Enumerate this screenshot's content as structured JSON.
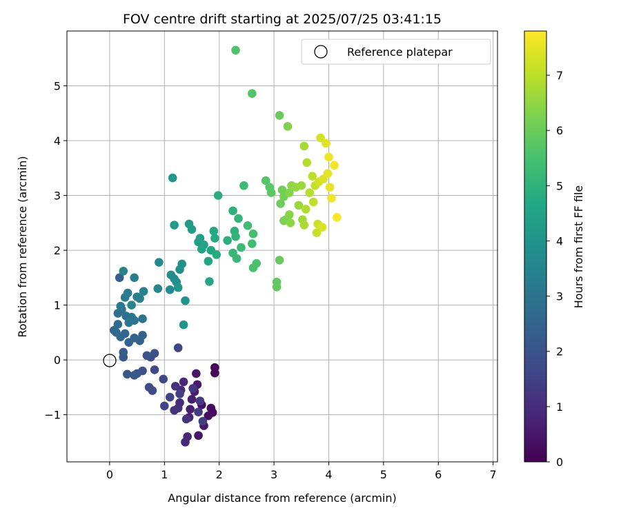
{
  "chart_data": {
    "type": "scatter",
    "title": "FOV centre drift starting at 2025/07/25 03:41:15",
    "xlabel": "Angular distance from reference (arcmin)",
    "ylabel": "Rotation from reference (arcmin)",
    "xlim": [
      -0.78,
      7.08
    ],
    "ylim": [
      -1.86,
      6.0
    ],
    "xticks": [
      0,
      1,
      2,
      3,
      4,
      5,
      6,
      7
    ],
    "yticks": [
      -1,
      0,
      1,
      2,
      3,
      4,
      5
    ],
    "grid": true,
    "legend": {
      "placement": "upper-right",
      "entries": [
        {
          "label": "Reference platepar",
          "marker": "open-circle"
        }
      ]
    },
    "reference_point": {
      "x": 0,
      "y": 0
    },
    "colorbar": {
      "label": "Hours from first FF file",
      "colormap": "viridis",
      "range": [
        0,
        7.8
      ],
      "ticks": [
        0,
        1,
        2,
        3,
        4,
        5,
        6,
        7
      ]
    },
    "points": [
      [
        1.92,
        -0.14,
        0.1
      ],
      [
        1.92,
        -0.24,
        0.15
      ],
      [
        1.85,
        -0.88,
        0.2
      ],
      [
        1.88,
        -0.96,
        0.25
      ],
      [
        1.8,
        -1.02,
        0.3
      ],
      [
        1.68,
        -0.82,
        0.35
      ],
      [
        1.72,
        -1.2,
        0.4
      ],
      [
        1.62,
        -1.38,
        0.45
      ],
      [
        1.58,
        -0.25,
        0.5
      ],
      [
        1.6,
        -0.45,
        0.55
      ],
      [
        1.55,
        -0.58,
        0.6
      ],
      [
        1.5,
        -0.72,
        0.65
      ],
      [
        1.47,
        -0.9,
        0.7
      ],
      [
        1.45,
        -1.05,
        0.75
      ],
      [
        1.42,
        -1.4,
        0.8
      ],
      [
        1.38,
        -1.5,
        0.85
      ],
      [
        1.35,
        -0.4,
        0.9
      ],
      [
        1.3,
        -0.55,
        0.95
      ],
      [
        1.28,
        -0.78,
        1.0
      ],
      [
        1.25,
        -0.88,
        1.05
      ],
      [
        1.2,
        -0.48,
        1.1
      ],
      [
        1.18,
        -0.92,
        1.15
      ],
      [
        1.4,
        -1.08,
        1.2
      ],
      [
        1.52,
        -0.52,
        1.25
      ],
      [
        1.65,
        -0.75,
        1.3
      ],
      [
        1.7,
        -1.12,
        1.35
      ],
      [
        1.62,
        -0.95,
        1.4
      ],
      [
        1.28,
        -0.62,
        1.45
      ],
      [
        1.1,
        -0.68,
        1.5
      ],
      [
        1.0,
        -0.84,
        1.55
      ],
      [
        1.25,
        0.22,
        1.6
      ],
      [
        0.98,
        -0.35,
        1.65
      ],
      [
        0.82,
        -0.18,
        1.7
      ],
      [
        0.78,
        -0.56,
        1.75
      ],
      [
        0.72,
        -0.5,
        1.8
      ],
      [
        0.75,
        0.05,
        1.85
      ],
      [
        0.82,
        0.12,
        1.9
      ],
      [
        0.68,
        0.08,
        1.95
      ],
      [
        0.6,
        -0.2,
        2.0
      ],
      [
        0.5,
        -0.25,
        2.05
      ],
      [
        0.45,
        -0.28,
        2.1
      ],
      [
        0.32,
        -0.26,
        2.15
      ],
      [
        0.25,
        0.05,
        2.2
      ],
      [
        0.25,
        0.14,
        2.25
      ],
      [
        0.18,
        1.5,
        2.3
      ],
      [
        0.55,
        0.35,
        2.35
      ],
      [
        0.6,
        0.45,
        2.4
      ],
      [
        0.45,
        0.4,
        2.45
      ],
      [
        0.35,
        0.32,
        2.5
      ],
      [
        0.28,
        0.48,
        2.55
      ],
      [
        0.2,
        0.42,
        2.6
      ],
      [
        0.12,
        0.5,
        2.65
      ],
      [
        0.08,
        0.54,
        2.7
      ],
      [
        0.15,
        0.65,
        2.75
      ],
      [
        0.15,
        0.85,
        2.8
      ],
      [
        0.22,
        0.92,
        2.85
      ],
      [
        0.3,
        0.8,
        2.9
      ],
      [
        0.4,
        0.78,
        2.95
      ],
      [
        0.45,
        0.72,
        3.0
      ],
      [
        0.6,
        0.75,
        3.05
      ],
      [
        0.35,
        0.68,
        3.1
      ],
      [
        0.2,
        0.98,
        3.15
      ],
      [
        0.28,
        1.14,
        3.2
      ],
      [
        0.33,
        1.22,
        3.25
      ],
      [
        0.45,
        1.5,
        3.3
      ],
      [
        0.5,
        1.15,
        3.35
      ],
      [
        0.55,
        1.12,
        3.4
      ],
      [
        0.62,
        1.25,
        3.45
      ],
      [
        0.25,
        1.62,
        3.5
      ],
      [
        0.4,
        1.0,
        3.55
      ],
      [
        0.88,
        1.3,
        3.6
      ],
      [
        0.9,
        1.78,
        3.65
      ],
      [
        1.1,
        1.28,
        3.7
      ],
      [
        1.12,
        1.55,
        3.75
      ],
      [
        1.18,
        1.48,
        3.8
      ],
      [
        1.22,
        1.42,
        3.85
      ],
      [
        1.28,
        1.65,
        3.9
      ],
      [
        1.32,
        1.75,
        3.95
      ],
      [
        1.38,
        1.08,
        4.0
      ],
      [
        1.35,
        0.64,
        4.05
      ],
      [
        1.25,
        1.32,
        4.1
      ],
      [
        1.15,
        3.32,
        4.15
      ],
      [
        1.18,
        2.46,
        4.2
      ],
      [
        1.45,
        2.48,
        4.25
      ],
      [
        1.5,
        2.38,
        4.3
      ],
      [
        1.62,
        2.15,
        4.35
      ],
      [
        1.65,
        2.22,
        4.4
      ],
      [
        1.72,
        2.1,
        4.45
      ],
      [
        1.68,
        2.02,
        4.5
      ],
      [
        1.8,
        1.8,
        4.55
      ],
      [
        1.82,
        1.43,
        4.6
      ],
      [
        1.85,
        2.0,
        4.65
      ],
      [
        1.9,
        2.35,
        4.7
      ],
      [
        1.92,
        2.22,
        4.75
      ],
      [
        1.95,
        1.92,
        4.8
      ],
      [
        1.98,
        3.0,
        4.85
      ],
      [
        2.15,
        2.18,
        4.9
      ],
      [
        2.25,
        2.72,
        4.95
      ],
      [
        2.28,
        2.35,
        5.0
      ],
      [
        2.3,
        2.25,
        5.05
      ],
      [
        2.35,
        2.58,
        5.1
      ],
      [
        2.25,
        1.95,
        5.15
      ],
      [
        2.32,
        1.85,
        5.2
      ],
      [
        2.4,
        2.05,
        5.25
      ],
      [
        2.45,
        3.18,
        5.3
      ],
      [
        2.52,
        2.45,
        5.35
      ],
      [
        2.6,
        2.12,
        5.4
      ],
      [
        2.62,
        2.3,
        5.45
      ],
      [
        2.62,
        1.68,
        5.5
      ],
      [
        2.68,
        1.76,
        5.55
      ],
      [
        2.3,
        5.65,
        5.6
      ],
      [
        2.6,
        4.86,
        5.65
      ],
      [
        2.85,
        3.27,
        5.7
      ],
      [
        2.92,
        3.15,
        5.75
      ],
      [
        2.95,
        3.05,
        5.8
      ],
      [
        3.05,
        1.42,
        5.85
      ],
      [
        3.05,
        1.33,
        5.9
      ],
      [
        3.1,
        1.82,
        5.95
      ],
      [
        3.1,
        4.46,
        6.0
      ],
      [
        3.12,
        2.85,
        6.05
      ],
      [
        3.15,
        3.1,
        6.1
      ],
      [
        3.18,
        2.98,
        6.15
      ],
      [
        3.18,
        2.54,
        6.2
      ],
      [
        3.22,
        2.56,
        6.25
      ],
      [
        3.25,
        4.26,
        6.3
      ],
      [
        3.28,
        3.05,
        6.35
      ],
      [
        3.28,
        2.65,
        6.4
      ],
      [
        3.3,
        2.5,
        6.45
      ],
      [
        3.32,
        3.18,
        6.5
      ],
      [
        3.4,
        3.15,
        6.55
      ],
      [
        3.45,
        2.82,
        6.6
      ],
      [
        3.5,
        3.18,
        6.65
      ],
      [
        3.52,
        2.56,
        6.7
      ],
      [
        3.55,
        3.9,
        6.75
      ],
      [
        3.55,
        2.46,
        6.8
      ],
      [
        3.58,
        2.75,
        6.85
      ],
      [
        3.6,
        3.6,
        6.9
      ],
      [
        3.65,
        3.05,
        6.95
      ],
      [
        3.7,
        3.35,
        7.0
      ],
      [
        3.72,
        2.88,
        7.05
      ],
      [
        3.75,
        3.18,
        7.1
      ],
      [
        3.78,
        2.32,
        7.15
      ],
      [
        3.8,
        2.48,
        7.2
      ],
      [
        3.82,
        3.25,
        7.25
      ],
      [
        3.85,
        4.05,
        7.3
      ],
      [
        3.88,
        2.42,
        7.35
      ],
      [
        3.9,
        3.3,
        7.4
      ],
      [
        3.95,
        3.95,
        7.45
      ],
      [
        3.98,
        3.4,
        7.5
      ],
      [
        4.02,
        3.15,
        7.55
      ],
      [
        4.0,
        3.7,
        7.6
      ],
      [
        4.05,
        2.95,
        7.65
      ],
      [
        4.1,
        3.55,
        7.7
      ],
      [
        4.15,
        2.6,
        7.75
      ]
    ]
  }
}
